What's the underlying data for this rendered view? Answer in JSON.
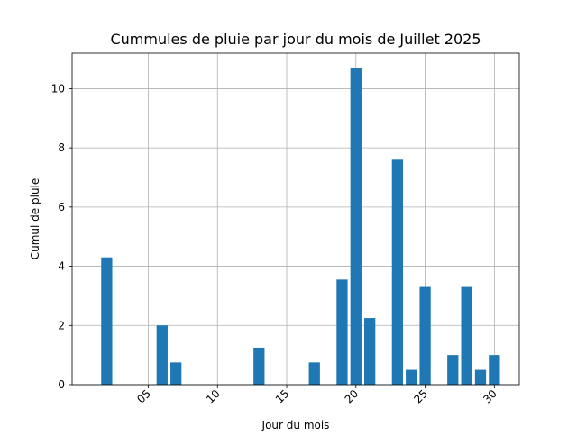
{
  "chart_data": {
    "type": "bar",
    "title": "Cummules de pluie par jour du mois de Juillet 2025",
    "xlabel": "Jour du mois",
    "ylabel": "Cumul de pluie",
    "xlim": [
      -0.5,
      31.8
    ],
    "ylim": [
      0,
      11.2
    ],
    "x_ticks": [
      {
        "value": 5,
        "label": "05"
      },
      {
        "value": 10,
        "label": "10"
      },
      {
        "value": 15,
        "label": "15"
      },
      {
        "value": 20,
        "label": "20"
      },
      {
        "value": 25,
        "label": "25"
      },
      {
        "value": 30,
        "label": "30"
      }
    ],
    "y_ticks": [
      0,
      2,
      4,
      6,
      8,
      10
    ],
    "grid": true,
    "bar_color": "#1f77b4",
    "x": [
      2,
      6,
      7,
      13,
      17,
      19,
      20,
      21,
      23,
      24,
      25,
      27,
      28,
      29,
      30
    ],
    "values": [
      4.3,
      2.0,
      0.75,
      1.25,
      0.75,
      3.55,
      10.7,
      2.25,
      7.6,
      0.5,
      3.3,
      1.0,
      3.3,
      0.5,
      1.0
    ]
  }
}
